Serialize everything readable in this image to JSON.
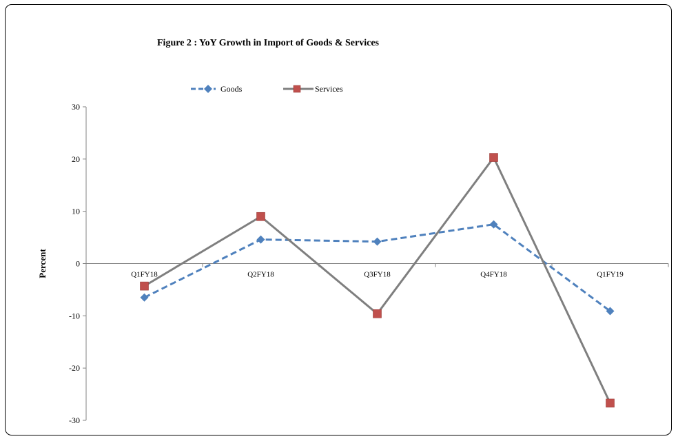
{
  "chart_data": {
    "type": "line",
    "title": "Figure 2 : YoY Growth in Import  of Goods & Services",
    "ylabel": "Percent",
    "xlabel": "",
    "categories": [
      "Q1FY18",
      "Q2FY18",
      "Q3FY18",
      "Q4FY18",
      "Q1FY19"
    ],
    "ylim": [
      -30,
      30
    ],
    "yticks": [
      30,
      20,
      10,
      0,
      -10,
      -20,
      -30
    ],
    "grid": false,
    "legend": "top-left",
    "series": [
      {
        "name": "Goods",
        "values": [
          -6.5,
          4.6,
          4.2,
          7.5,
          -9.1
        ],
        "color": "#4f81bd",
        "style": "dashed",
        "marker": "diamond"
      },
      {
        "name": "Services",
        "values": [
          -4.3,
          9.0,
          -9.6,
          20.3,
          -26.7
        ],
        "color": "#7f7f7f",
        "style": "solid",
        "marker": "square",
        "marker_color": "#c0504d"
      }
    ]
  }
}
